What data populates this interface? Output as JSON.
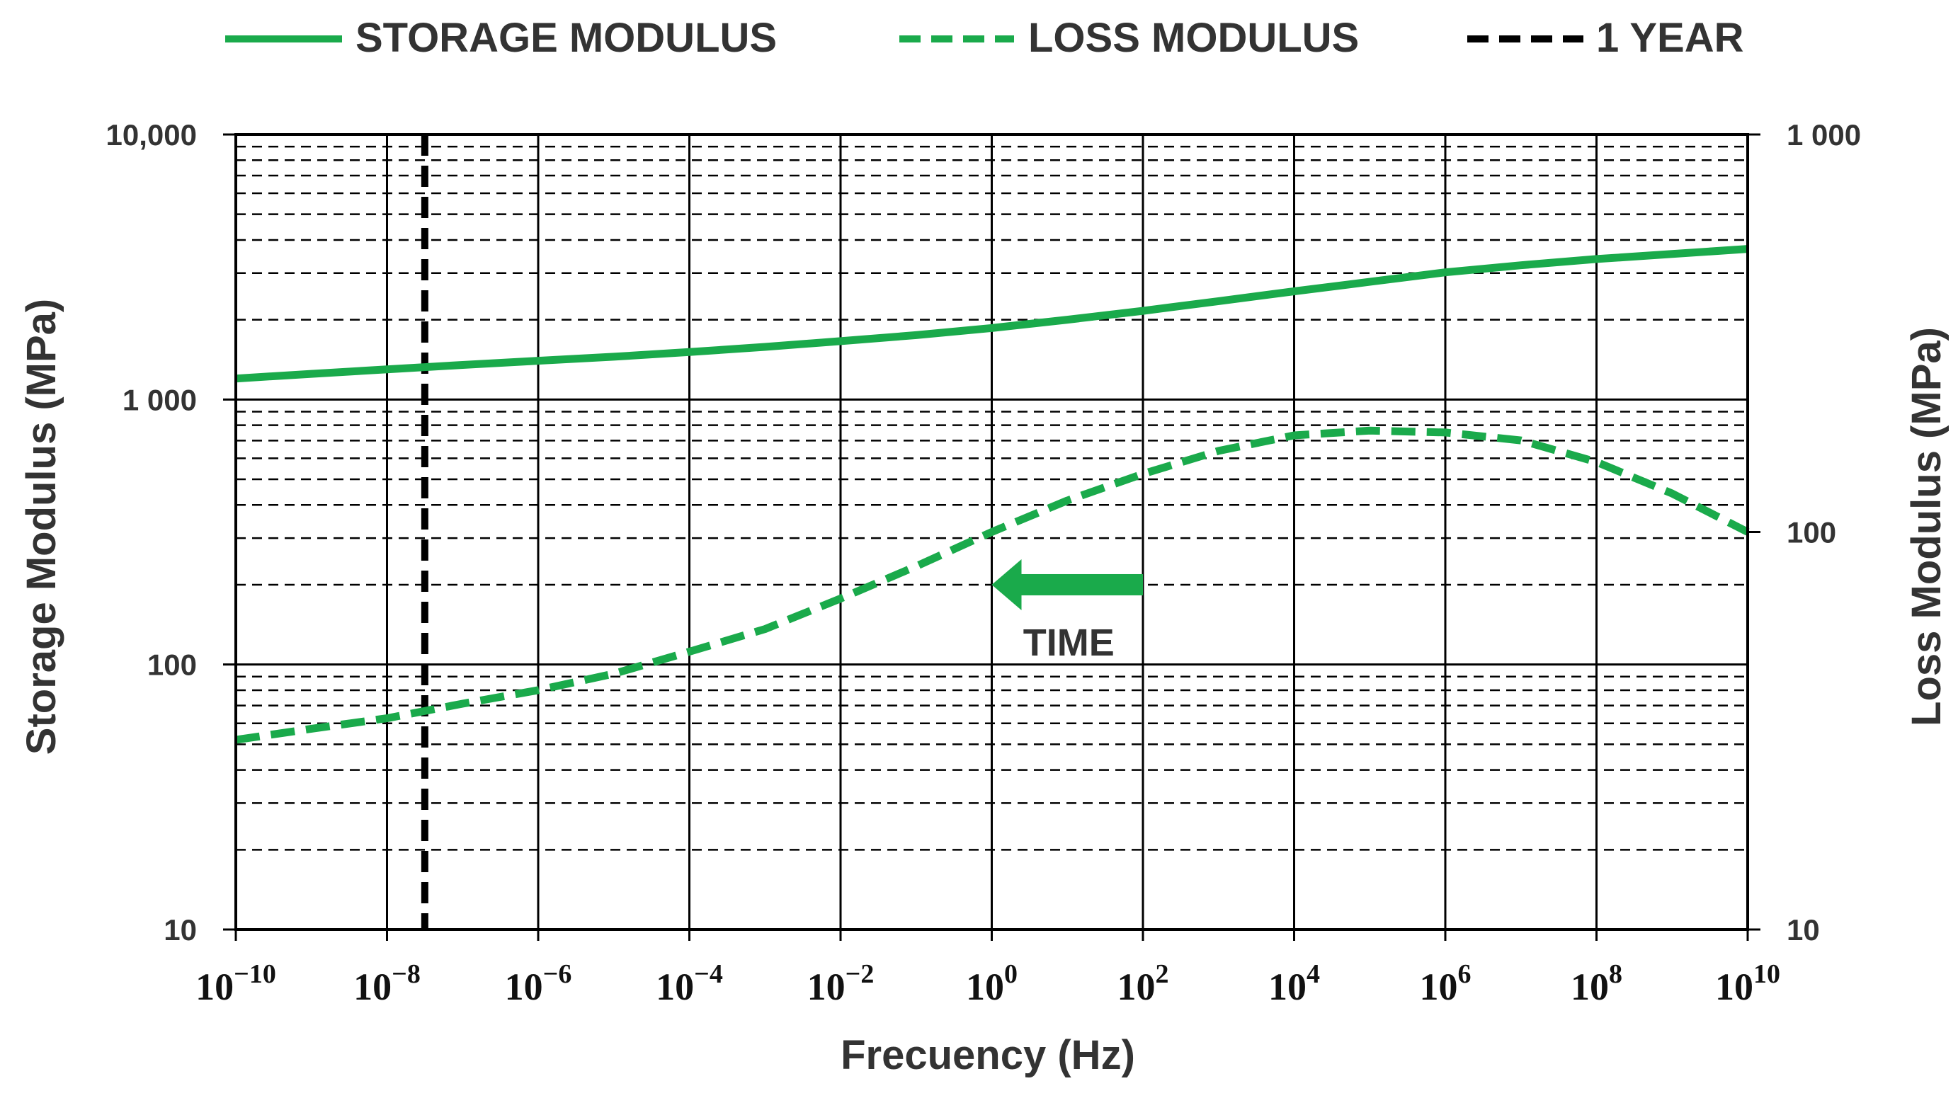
{
  "chart_data": {
    "type": "line",
    "title": "",
    "xlabel": "Frecuency (Hz)",
    "ylabel_left": "Storage Modulus (MPa)",
    "ylabel_right": "Loss Modulus (MPa)",
    "x_scale": "log10",
    "xlim_exponent": [
      -10,
      10
    ],
    "x_tick_base": "10",
    "x_tick_exponents": [
      "−10",
      "−8",
      "−6",
      "−4",
      "−2",
      "0",
      "2",
      "4",
      "6",
      "8",
      "10"
    ],
    "x_tick_exponent_values": [
      -10,
      -8,
      -6,
      -4,
      -2,
      0,
      2,
      4,
      6,
      8,
      10
    ],
    "ylim_left": [
      10,
      10000
    ],
    "ylim_right": [
      10,
      1000
    ],
    "y_ticks_left": [
      {
        "value": 10,
        "label": "10"
      },
      {
        "value": 100,
        "label": "100"
      },
      {
        "value": 1000,
        "label": "1 000"
      },
      {
        "value": 10000,
        "label": "10,000"
      }
    ],
    "y_ticks_right": [
      {
        "value": 10,
        "label": "10"
      },
      {
        "value": 100,
        "label": "100"
      },
      {
        "value": 1000,
        "label": "1 000"
      }
    ],
    "grid": "major solid, minor dashed",
    "legend_position": "top",
    "legend": [
      {
        "label": "STORAGE MODULUS",
        "style": "solid",
        "color": "#1aaa4b"
      },
      {
        "label": "LOSS MODULUS",
        "style": "dashed",
        "color": "#1aaa4b"
      },
      {
        "label": "1 YEAR",
        "style": "dashed",
        "color": "#000000"
      }
    ],
    "series": [
      {
        "name": "STORAGE MODULUS",
        "axis": "left",
        "style": "solid",
        "color": "#1aaa4b",
        "log_freq": [
          -10,
          -9,
          -8,
          -7,
          -6,
          -5,
          -4,
          -3,
          -2,
          -1,
          0,
          1,
          2,
          3,
          4,
          5,
          6,
          7,
          8,
          9,
          10
        ],
        "values": [
          1200,
          1250,
          1300,
          1350,
          1400,
          1450,
          1510,
          1580,
          1660,
          1750,
          1860,
          2000,
          2160,
          2350,
          2560,
          2780,
          3020,
          3210,
          3390,
          3540,
          3700
        ]
      },
      {
        "name": "LOSS MODULUS",
        "axis": "right",
        "style": "dashed",
        "color": "#1aaa4b",
        "log_freq": [
          -10,
          -9,
          -8,
          -7,
          -6,
          -5,
          -4,
          -3,
          -2,
          -1,
          0,
          1,
          2,
          3,
          4,
          5,
          6,
          7,
          8,
          9,
          10
        ],
        "values": [
          30,
          32,
          34,
          37,
          40,
          44,
          50,
          57,
          68,
          82,
          100,
          120,
          140,
          160,
          175,
          180,
          178,
          170,
          150,
          125,
          100
        ]
      }
    ],
    "reference_lines": [
      {
        "name": "1 YEAR",
        "axis": "x",
        "log_freq": -7.5,
        "style": "dashed",
        "color": "#000000"
      }
    ],
    "annotations": [
      {
        "text": "TIME",
        "arrow": "left",
        "color": "#1aaa4b",
        "log_freq_from": 2,
        "log_freq_to": 0,
        "at_left_value": 200
      }
    ]
  }
}
